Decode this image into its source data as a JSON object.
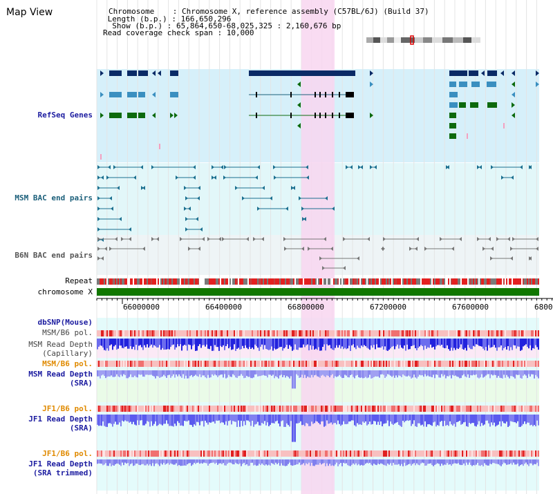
{
  "header": {
    "title": "Map View",
    "lines": [
      "Chromosome    : Chromosome X, reference assembly (C57BL/6J) (Build 37)",
      " Length (b.p.) : 166,650,296",
      "  Show (b.p.) : 65,864,650-68,025,325 : 2,160,676 bp",
      "Read coverage check span : 10,000"
    ]
  },
  "tracks": {
    "refseq": "RefSeq Genes",
    "msm_bac": "MSM BAC end pairs",
    "b6n_bac": "B6N BAC end pairs",
    "repeat": "Repeat",
    "chromosome": "chromosome X",
    "dbsnp": "dbSNP(Mouse)",
    "msm_b6_pol_1": "MSM/B6 pol.",
    "msm_depth_cap_1": "MSM Read Depth",
    "msm_depth_cap_2": "(Capillary)",
    "msm_b6_pol_2": "MSM/B6 pol.",
    "msm_depth_sra_1": "MSM Read Depth",
    "msm_depth_sra_2": "(SRA)",
    "jf1_b6_pol_1": "JF1/B6 pol.",
    "jf1_depth_sra_1": "JF1 Read Depth",
    "jf1_depth_sra_2": "(SRA)",
    "jf1_b6_pol_2": "JF1/B6 pol.",
    "jf1_depth_trim_1": "JF1 Read Depth",
    "jf1_depth_trim_2": "(SRA trimmed)"
  },
  "axis": {
    "ticks": [
      "66000000",
      "66400000",
      "66800000",
      "67200000",
      "67600000",
      "6800"
    ]
  },
  "colors": {
    "refseq_label": "#1c1ca0",
    "msm_bac_label": "#1b5f7a",
    "b6n_bac_label": "#555555",
    "orange_label": "#e08a00",
    "blue_label": "#1c1ca0",
    "highlight": "#f8d6f0",
    "chromosome_bar": "#117700"
  }
}
